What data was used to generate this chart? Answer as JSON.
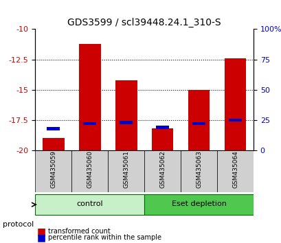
{
  "title": "GDS3599 / scl39448.24.1_310-S",
  "samples": [
    "GSM435059",
    "GSM435060",
    "GSM435061",
    "GSM435062",
    "GSM435063",
    "GSM435064"
  ],
  "red_bar_top": [
    -19.0,
    -11.2,
    -14.2,
    -18.2,
    -15.0,
    -12.4
  ],
  "red_bar_bottom": -20.0,
  "blue_marker": [
    -18.2,
    -17.8,
    -17.7,
    -18.1,
    -17.8,
    -17.5
  ],
  "ylim": [
    -20,
    -10
  ],
  "yticks_left": [
    -20,
    -17.5,
    -15,
    -12.5,
    -10
  ],
  "ytick_labels_left": [
    "-20",
    "-17.5",
    "-15",
    "-12.5",
    "-10"
  ],
  "yticks_right": [
    -20,
    -17.5,
    -15,
    -12.5,
    -10
  ],
  "ytick_labels_right": [
    "0",
    "25",
    "50",
    "75",
    "100%"
  ],
  "groups": [
    {
      "label": "control",
      "samples": [
        0,
        1,
        2
      ],
      "color": "#c8f0c8"
    },
    {
      "label": "Eset depletion",
      "samples": [
        3,
        4,
        5
      ],
      "color": "#50c850"
    }
  ],
  "protocol_label": "protocol",
  "red_color": "#cc0000",
  "blue_color": "#0000cc",
  "bar_width": 0.6,
  "legend_red": "transformed count",
  "legend_blue": "percentile rank within the sample",
  "left_color": "#cc0000",
  "right_color": "#0000cc",
  "grid_color": "#000000",
  "background_color": "#ffffff",
  "tick_bg_color": "#d0d0d0"
}
